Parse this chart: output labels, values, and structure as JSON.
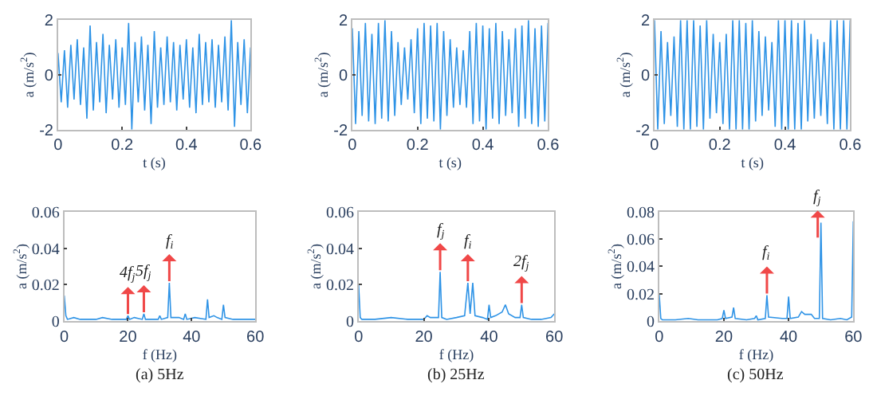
{
  "chart_data": [
    {
      "type": "line",
      "xlabel": "t (s)",
      "ylabel": "a (m/s$^{2}$)",
      "xlim": [
        0,
        0.6
      ],
      "xticks": [
        0,
        0.2,
        0.4,
        0.6
      ],
      "ylim": [
        -2,
        2
      ],
      "yticks": [
        -2,
        0,
        2
      ],
      "x": [
        0,
        0.01,
        0.02,
        0.03,
        0.04,
        0.05,
        0.06,
        0.07,
        0.08,
        0.09,
        0.1,
        0.11,
        0.12,
        0.13,
        0.14,
        0.15,
        0.16,
        0.17,
        0.18,
        0.19,
        0.2,
        0.21,
        0.22,
        0.23,
        0.24,
        0.25,
        0.26,
        0.27,
        0.28,
        0.29,
        0.3,
        0.31,
        0.32,
        0.33,
        0.34,
        0.35,
        0.36,
        0.37,
        0.38,
        0.39,
        0.4,
        0.41,
        0.42,
        0.43,
        0.44,
        0.45,
        0.46,
        0.47,
        0.48,
        0.49,
        0.5,
        0.51,
        0.52,
        0.53,
        0.54,
        0.55,
        0.56,
        0.57,
        0.58,
        0.59,
        0.6
      ],
      "series": [
        {
          "color": "#2e93e6",
          "values": [
            0.8,
            -1.0,
            0.9,
            -1.2,
            1.1,
            -0.9,
            1.3,
            -1.1,
            1.0,
            -1.6,
            1.8,
            -1.3,
            1.2,
            -1.0,
            1.5,
            -1.4,
            1.1,
            -0.9,
            1.3,
            -1.2,
            1.0,
            -1.1,
            1.9,
            -2.0,
            1.2,
            -1.0,
            1.4,
            -1.3,
            1.1,
            -1.8,
            1.6,
            -1.2,
            1.0,
            -1.1,
            1.4,
            -1.0,
            1.2,
            -1.3,
            1.1,
            -0.9,
            1.3,
            -1.2,
            1.0,
            -1.4,
            1.5,
            -1.1,
            1.2,
            -1.0,
            1.3,
            -1.2,
            1.1,
            -1.0,
            1.4,
            -1.3,
            2.0,
            -1.9,
            1.2,
            -1.1,
            1.3,
            -1.4,
            1.0
          ]
        }
      ]
    },
    {
      "type": "line",
      "xlabel": "t (s)",
      "ylabel": "a (m/s$^{2}$)",
      "xlim": [
        0,
        0.6
      ],
      "xticks": [
        0,
        0.2,
        0.4,
        0.6
      ],
      "ylim": [
        -2,
        2
      ],
      "yticks": [
        -2,
        0,
        2
      ],
      "x": [
        0,
        0.01,
        0.02,
        0.03,
        0.04,
        0.05,
        0.06,
        0.07,
        0.08,
        0.09,
        0.1,
        0.11,
        0.12,
        0.13,
        0.14,
        0.15,
        0.16,
        0.17,
        0.18,
        0.19,
        0.2,
        0.21,
        0.22,
        0.23,
        0.24,
        0.25,
        0.26,
        0.27,
        0.28,
        0.29,
        0.3,
        0.31,
        0.32,
        0.33,
        0.34,
        0.35,
        0.36,
        0.37,
        0.38,
        0.39,
        0.4,
        0.41,
        0.42,
        0.43,
        0.44,
        0.45,
        0.46,
        0.47,
        0.48,
        0.49,
        0.5,
        0.51,
        0.52,
        0.53,
        0.54,
        0.55,
        0.56,
        0.57,
        0.58,
        0.59,
        0.6
      ],
      "series": [
        {
          "color": "#2e93e6",
          "values": [
            1.7,
            -1.8,
            1.6,
            -1.5,
            1.9,
            -1.7,
            1.5,
            -1.8,
            1.9,
            -1.6,
            2.0,
            -1.7,
            1.6,
            -1.5,
            1.2,
            -1.1,
            1.0,
            -0.9,
            1.3,
            -1.4,
            1.7,
            -1.8,
            1.9,
            -1.6,
            1.8,
            -1.7,
            1.9,
            -2.0,
            1.6,
            -1.5,
            1.3,
            -1.2,
            1.0,
            -1.1,
            0.9,
            -1.2,
            1.6,
            -1.8,
            1.9,
            -1.7,
            1.8,
            -2.0,
            1.7,
            -1.6,
            1.9,
            -1.8,
            1.6,
            -1.5,
            1.3,
            -1.4,
            1.7,
            -1.9,
            1.8,
            -1.6,
            2.0,
            -1.8,
            1.7,
            -1.9,
            1.8,
            -1.7,
            1.9
          ]
        }
      ]
    },
    {
      "type": "line",
      "xlabel": "t (s)",
      "ylabel": "a (m/s$^{2}$)",
      "xlim": [
        0,
        0.6
      ],
      "xticks": [
        0,
        0.2,
        0.4,
        0.6
      ],
      "ylim": [
        -2,
        2
      ],
      "yticks": [
        -2,
        0,
        2
      ],
      "x": [
        0,
        0.01,
        0.02,
        0.03,
        0.04,
        0.05,
        0.06,
        0.07,
        0.08,
        0.09,
        0.1,
        0.11,
        0.12,
        0.13,
        0.14,
        0.15,
        0.16,
        0.17,
        0.18,
        0.19,
        0.2,
        0.21,
        0.22,
        0.23,
        0.24,
        0.25,
        0.26,
        0.27,
        0.28,
        0.29,
        0.3,
        0.31,
        0.32,
        0.33,
        0.34,
        0.35,
        0.36,
        0.37,
        0.38,
        0.39,
        0.4,
        0.41,
        0.42,
        0.43,
        0.44,
        0.45,
        0.46,
        0.47,
        0.48,
        0.49,
        0.5,
        0.51,
        0.52,
        0.53,
        0.54,
        0.55,
        0.56,
        0.57,
        0.58,
        0.59,
        0.6
      ],
      "series": [
        {
          "color": "#2e93e6",
          "values": [
            2.0,
            -2.0,
            1.6,
            -1.8,
            1.2,
            -1.5,
            1.4,
            -1.9,
            2.0,
            -2.0,
            2.0,
            -2.0,
            2.0,
            -1.9,
            1.8,
            -2.0,
            2.0,
            -1.6,
            1.5,
            -1.4,
            1.2,
            -1.8,
            1.5,
            -2.0,
            2.0,
            -2.0,
            2.0,
            -2.0,
            1.9,
            -2.0,
            2.0,
            -1.7,
            1.6,
            -1.5,
            1.4,
            -1.3,
            1.2,
            -1.9,
            2.0,
            -2.0,
            2.0,
            -2.0,
            2.0,
            -2.0,
            1.9,
            -2.0,
            2.0,
            -1.7,
            1.5,
            -1.6,
            1.3,
            -1.5,
            1.2,
            -1.8,
            2.0,
            -2.0,
            2.0,
            -2.0,
            2.0,
            -2.0,
            2.0
          ]
        }
      ]
    },
    {
      "type": "line",
      "xlabel": "f (Hz)",
      "ylabel": "a (m/s$^{2}$)",
      "xlim": [
        0,
        60
      ],
      "xticks": [
        0,
        20,
        40,
        60
      ],
      "ylim": [
        0,
        0.06
      ],
      "yticks": [
        0,
        0.02,
        0.04,
        0.06
      ],
      "x": [
        0,
        0.5,
        1,
        3,
        5,
        8,
        10,
        12,
        15,
        18,
        19.5,
        20,
        20.5,
        22,
        24.5,
        25,
        25.5,
        28,
        29.5,
        30,
        30.5,
        32.5,
        33,
        33.5,
        36,
        37.5,
        38,
        38.5,
        41,
        44.5,
        45,
        45.5,
        47,
        48,
        49.5,
        50,
        50.5,
        53,
        56,
        59,
        60
      ],
      "series": [
        {
          "color": "#2e93e6",
          "values": [
            0.014,
            0.003,
            0.001,
            0.002,
            0.001,
            0.001,
            0.001,
            0.002,
            0.001,
            0.001,
            0.001,
            0.003,
            0.001,
            0.002,
            0.001,
            0.004,
            0.001,
            0.001,
            0.001,
            0.003,
            0.001,
            0.002,
            0.021,
            0.002,
            0.002,
            0.001,
            0.004,
            0.001,
            0.002,
            0.001,
            0.012,
            0.002,
            0.003,
            0.002,
            0.001,
            0.009,
            0.002,
            0.001,
            0.001,
            0.001,
            0.001
          ]
        }
      ],
      "annotations": [
        {
          "text": "4f$_{j}$",
          "x": 20,
          "y": 0.003
        },
        {
          "text": "5f$_{j}$",
          "x": 25,
          "y": 0.004
        },
        {
          "text": "f$_{i}$",
          "x": 33,
          "y": 0.021
        },
        "(a) 5Hz"
      ]
    },
    {
      "type": "line",
      "xlabel": "f (Hz)",
      "ylabel": "a (m/s$^{2}$)",
      "xlim": [
        0,
        60
      ],
      "xticks": [
        0,
        20,
        40,
        60
      ],
      "ylim": [
        0,
        0.06
      ],
      "yticks": [
        0,
        0.02,
        0.04,
        0.06
      ],
      "x": [
        0,
        0.5,
        1,
        5,
        10,
        15,
        20,
        21,
        22,
        23,
        24.5,
        25,
        25.5,
        27,
        30,
        32.5,
        33.5,
        34.2,
        35,
        35.7,
        38,
        39.5,
        40,
        40.5,
        42,
        44,
        45,
        46,
        48,
        49.5,
        50,
        50.5,
        53,
        56,
        59,
        60
      ],
      "series": [
        {
          "color": "#2e93e6",
          "values": [
            0.02,
            0.002,
            0.001,
            0.001,
            0.002,
            0.001,
            0.001,
            0.003,
            0.002,
            0.002,
            0.002,
            0.027,
            0.002,
            0.001,
            0.002,
            0.003,
            0.021,
            0.004,
            0.021,
            0.003,
            0.002,
            0.001,
            0.009,
            0.002,
            0.003,
            0.005,
            0.009,
            0.004,
            0.002,
            0.002,
            0.009,
            0.002,
            0.001,
            0.001,
            0.002,
            0.004
          ]
        }
      ],
      "annotations": [
        {
          "text": "f$_{j}$",
          "x": 25,
          "y": 0.027
        },
        {
          "text": "f$_{i}$",
          "x": 33.5,
          "y": 0.021
        },
        {
          "text": "2f$_{j}$",
          "x": 50,
          "y": 0.009
        },
        "(b) 25Hz"
      ]
    },
    {
      "type": "line",
      "xlabel": "f (Hz)",
      "ylabel": "a (m/s$^{2}$)",
      "xlim": [
        0,
        60
      ],
      "xticks": [
        0,
        20,
        40,
        60
      ],
      "ylim": [
        0,
        0.08
      ],
      "yticks": [
        0,
        0.02,
        0.04,
        0.06,
        0.08
      ],
      "x": [
        0,
        0.5,
        1,
        5,
        9,
        12,
        15,
        18,
        19.5,
        20,
        20.5,
        22.5,
        23,
        23.5,
        27,
        29.5,
        30,
        30.5,
        32.8,
        33.3,
        33.8,
        38,
        39.5,
        40,
        40.5,
        43,
        44,
        45,
        46,
        47,
        48,
        49.5,
        50,
        50.5,
        53,
        56,
        58,
        59.5,
        60
      ],
      "series": [
        {
          "color": "#2e93e6",
          "values": [
            0.02,
            0.002,
            0.001,
            0.001,
            0.002,
            0.001,
            0.001,
            0.001,
            0.002,
            0.008,
            0.002,
            0.003,
            0.01,
            0.002,
            0.001,
            0.002,
            0.004,
            0.001,
            0.002,
            0.019,
            0.003,
            0.002,
            0.002,
            0.018,
            0.002,
            0.003,
            0.007,
            0.005,
            0.005,
            0.005,
            0.002,
            0.002,
            0.072,
            0.002,
            0.001,
            0.002,
            0.001,
            0.003,
            0.073
          ]
        }
      ],
      "annotations": [
        {
          "text": "f$_{i}$",
          "x": 33.3,
          "y": 0.019
        },
        {
          "text": "f$_{j}$",
          "x": 49,
          "y": 0.06
        },
        "(c) 50Hz"
      ]
    }
  ]
}
